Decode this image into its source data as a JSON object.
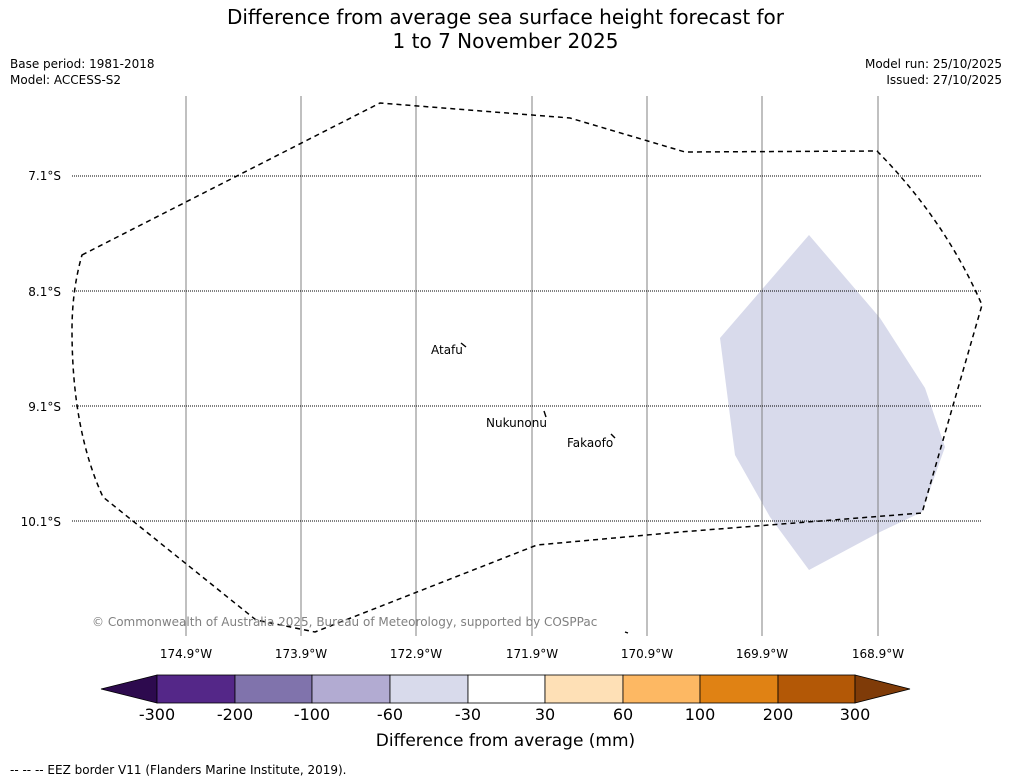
{
  "title": {
    "line1": "Difference from average sea surface height forecast for",
    "line2": "1 to 7 November 2025"
  },
  "meta": {
    "base_period": "Base period: 1981-2018",
    "model": "Model: ACCESS-S2",
    "model_run": "Model run: 25/10/2025",
    "issued": "Issued: 27/10/2025"
  },
  "map": {
    "lat_labels": [
      "7.1°S",
      "8.1°S",
      "9.1°S",
      "10.1°S"
    ],
    "lon_labels": [
      "174.9°W",
      "173.9°W",
      "172.9°W",
      "171.9°W",
      "170.9°W",
      "169.9°W",
      "168.9°W"
    ],
    "places": {
      "atafu": "Atafu",
      "nukunonu": "Nukunonu",
      "fakaofo": "Fakaofo"
    },
    "copyright": "© Commonwealth of Australia 2025, Bureau of Meteorology, supported by COSPPac"
  },
  "colorbar": {
    "title": "Difference from average (mm)",
    "ticks": [
      "-300",
      "-200",
      "-100",
      "-60",
      "-30",
      "30",
      "60",
      "100",
      "200",
      "300"
    ],
    "colors": [
      "#2d0a4e",
      "#542788",
      "#8073ac",
      "#b2abd2",
      "#d8daeb",
      "#ffffff",
      "#fee0b6",
      "#fdb863",
      "#e08214",
      "#b35806",
      "#7f3b08"
    ]
  },
  "footnote": "--  --  -- EEZ border V11 (Flanders Marine Institute, 2019)."
}
